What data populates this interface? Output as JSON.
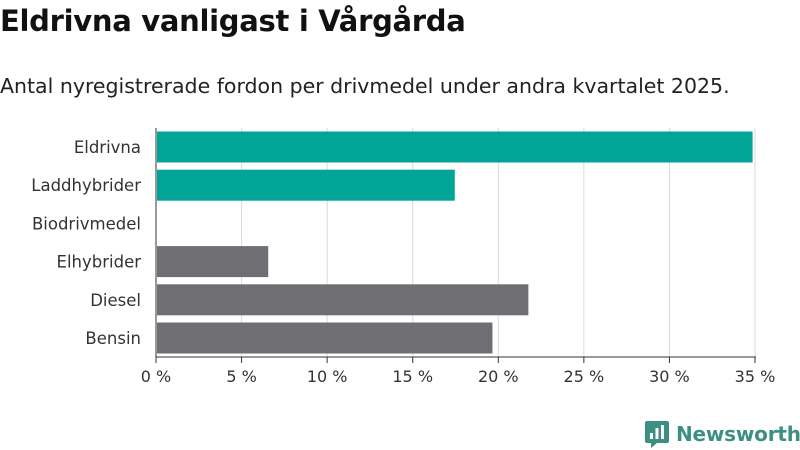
{
  "title": "Eldrivna vanligast i Vårgårda",
  "subtitle": "Antal nyregistrerade fordon per drivmedel under andra kvartalet 2025.",
  "brand": "Newsworthy",
  "colors": {
    "highlight": "#00a597",
    "neutral": "#6e6e73",
    "grid": "#d9d9d9",
    "brand": "#3e8f83"
  },
  "chart_data": {
    "type": "bar",
    "orientation": "horizontal",
    "categories": [
      "Eldrivna",
      "Laddhybrider",
      "Biodrivmedel",
      "Elhybrider",
      "Diesel",
      "Bensin"
    ],
    "values": [
      34.8,
      17.4,
      0,
      6.5,
      21.7,
      19.6
    ],
    "highlight": [
      true,
      true,
      true,
      false,
      false,
      false
    ],
    "xlim": [
      0,
      35
    ],
    "xticks": [
      0,
      5,
      10,
      15,
      20,
      25,
      30,
      35
    ],
    "tick_labels": [
      "0 %",
      "5 %",
      "10 %",
      "15 %",
      "20 %",
      "25 %",
      "30 %",
      "35 %"
    ],
    "grid": true
  }
}
